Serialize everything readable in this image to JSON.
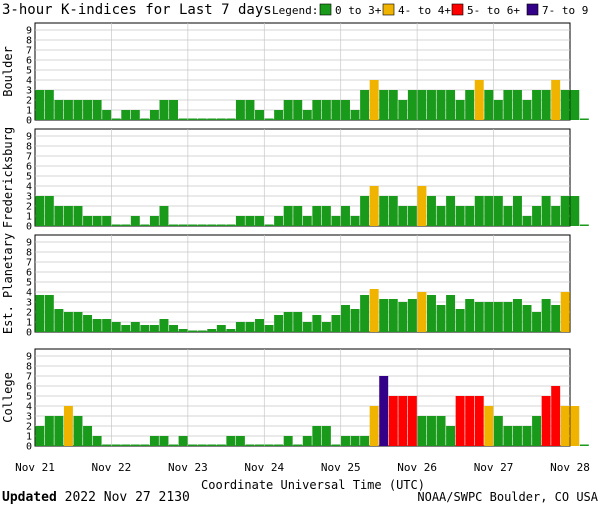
{
  "title": "3-hour K-indices for Last 7 days",
  "legend": {
    "label": "Legend:",
    "items": [
      {
        "text": "0 to 3+",
        "color": "#1a9a1a"
      },
      {
        "text": "4- to 4+",
        "color": "#f0b400"
      },
      {
        "text": "5- to 6+",
        "color": "#ff0000"
      },
      {
        "text": "7- to 9",
        "color": "#330088"
      }
    ]
  },
  "xlabel": "Coordinate Universal Time (UTC)",
  "footer": {
    "updated_label": "Updated",
    "updated_value": "2022 Nov 27 2130",
    "source": "NOAA/SWPC Boulder, CO USA"
  },
  "chart_data": [
    {
      "type": "bar",
      "name": "Boulder",
      "ylim": [
        0,
        9
      ],
      "yticks": [
        "0",
        "1",
        "2",
        "3",
        "4",
        "5",
        "6",
        "7",
        "8",
        "9"
      ],
      "xticks": [
        "Nov 21",
        "Nov 22",
        "Nov 23",
        "Nov 24",
        "Nov 25",
        "Nov 26",
        "Nov 27",
        "Nov 28"
      ],
      "bins_per_day": 8,
      "values": [
        3,
        3,
        2,
        2,
        2,
        2,
        2,
        1,
        0,
        1,
        1,
        0,
        1,
        2,
        2,
        0,
        0,
        0,
        0,
        0,
        0,
        2,
        2,
        1,
        0,
        1,
        2,
        2,
        1,
        2,
        2,
        2,
        2,
        1,
        3,
        4,
        3,
        3,
        2,
        3,
        3,
        3,
        3,
        3,
        2,
        3,
        4,
        3,
        2,
        3,
        3,
        2,
        3,
        3,
        4,
        3,
        3,
        0
      ]
    },
    {
      "type": "bar",
      "name": "Fredericksburg",
      "ylim": [
        0,
        9
      ],
      "yticks": [
        "0",
        "1",
        "2",
        "3",
        "4",
        "5",
        "6",
        "7",
        "8",
        "9"
      ],
      "xticks": [
        "Nov 21",
        "Nov 22",
        "Nov 23",
        "Nov 24",
        "Nov 25",
        "Nov 26",
        "Nov 27",
        "Nov 28"
      ],
      "bins_per_day": 8,
      "values": [
        3,
        3,
        2,
        2,
        2,
        1,
        1,
        1,
        0,
        0,
        1,
        0,
        1,
        2,
        0,
        0,
        0,
        0,
        0,
        0,
        0,
        1,
        1,
        1,
        0,
        1,
        2,
        2,
        1,
        2,
        2,
        1,
        2,
        1,
        3,
        4,
        3,
        3,
        2,
        2,
        4,
        3,
        2,
        3,
        2,
        2,
        3,
        3,
        3,
        2,
        3,
        1,
        2,
        3,
        2,
        3,
        3,
        0
      ]
    },
    {
      "type": "bar",
      "name": "Est. Planetary",
      "ylim": [
        0,
        9
      ],
      "yticks": [
        "0",
        "1",
        "2",
        "3",
        "4",
        "5",
        "6",
        "7",
        "8",
        "9"
      ],
      "xticks": [
        "Nov 21",
        "Nov 22",
        "Nov 23",
        "Nov 24",
        "Nov 25",
        "Nov 26",
        "Nov 27",
        "Nov 28"
      ],
      "bins_per_day": 8,
      "values": [
        3.7,
        3.7,
        2.3,
        2.0,
        2.0,
        1.7,
        1.3,
        1.3,
        1.0,
        0.7,
        1.0,
        0.7,
        0.7,
        1.3,
        0.7,
        0.3,
        0,
        0,
        0.3,
        0.7,
        0.3,
        1.0,
        1.0,
        1.3,
        0.7,
        1.7,
        2.0,
        2.0,
        1.0,
        1.7,
        1.0,
        1.7,
        2.7,
        2.3,
        3.7,
        4.3,
        3.3,
        3.3,
        3.0,
        3.3,
        4.0,
        3.7,
        2.7,
        3.7,
        2.3,
        3.3,
        3.0,
        3.0,
        3.0,
        3.0,
        3.3,
        2.7,
        2.0,
        3.3,
        2.7,
        4.0
      ]
    },
    {
      "type": "bar",
      "name": "College",
      "ylim": [
        0,
        9
      ],
      "yticks": [
        "0",
        "1",
        "2",
        "3",
        "4",
        "5",
        "6",
        "7",
        "8",
        "9"
      ],
      "xticks": [
        "Nov 21",
        "Nov 22",
        "Nov 23",
        "Nov 24",
        "Nov 25",
        "Nov 26",
        "Nov 27",
        "Nov 28"
      ],
      "bins_per_day": 8,
      "values": [
        2,
        3,
        3,
        4,
        3,
        2,
        1,
        0,
        0,
        0,
        0,
        0,
        1,
        1,
        0,
        1,
        0,
        0,
        0,
        0,
        1,
        1,
        0,
        0,
        0,
        0,
        1,
        0,
        1,
        2,
        2,
        0,
        1,
        1,
        1,
        4,
        7,
        5,
        5,
        5,
        3,
        3,
        3,
        2,
        5,
        5,
        5,
        4,
        3,
        2,
        2,
        2,
        3,
        5,
        6,
        4,
        4,
        0
      ]
    }
  ]
}
